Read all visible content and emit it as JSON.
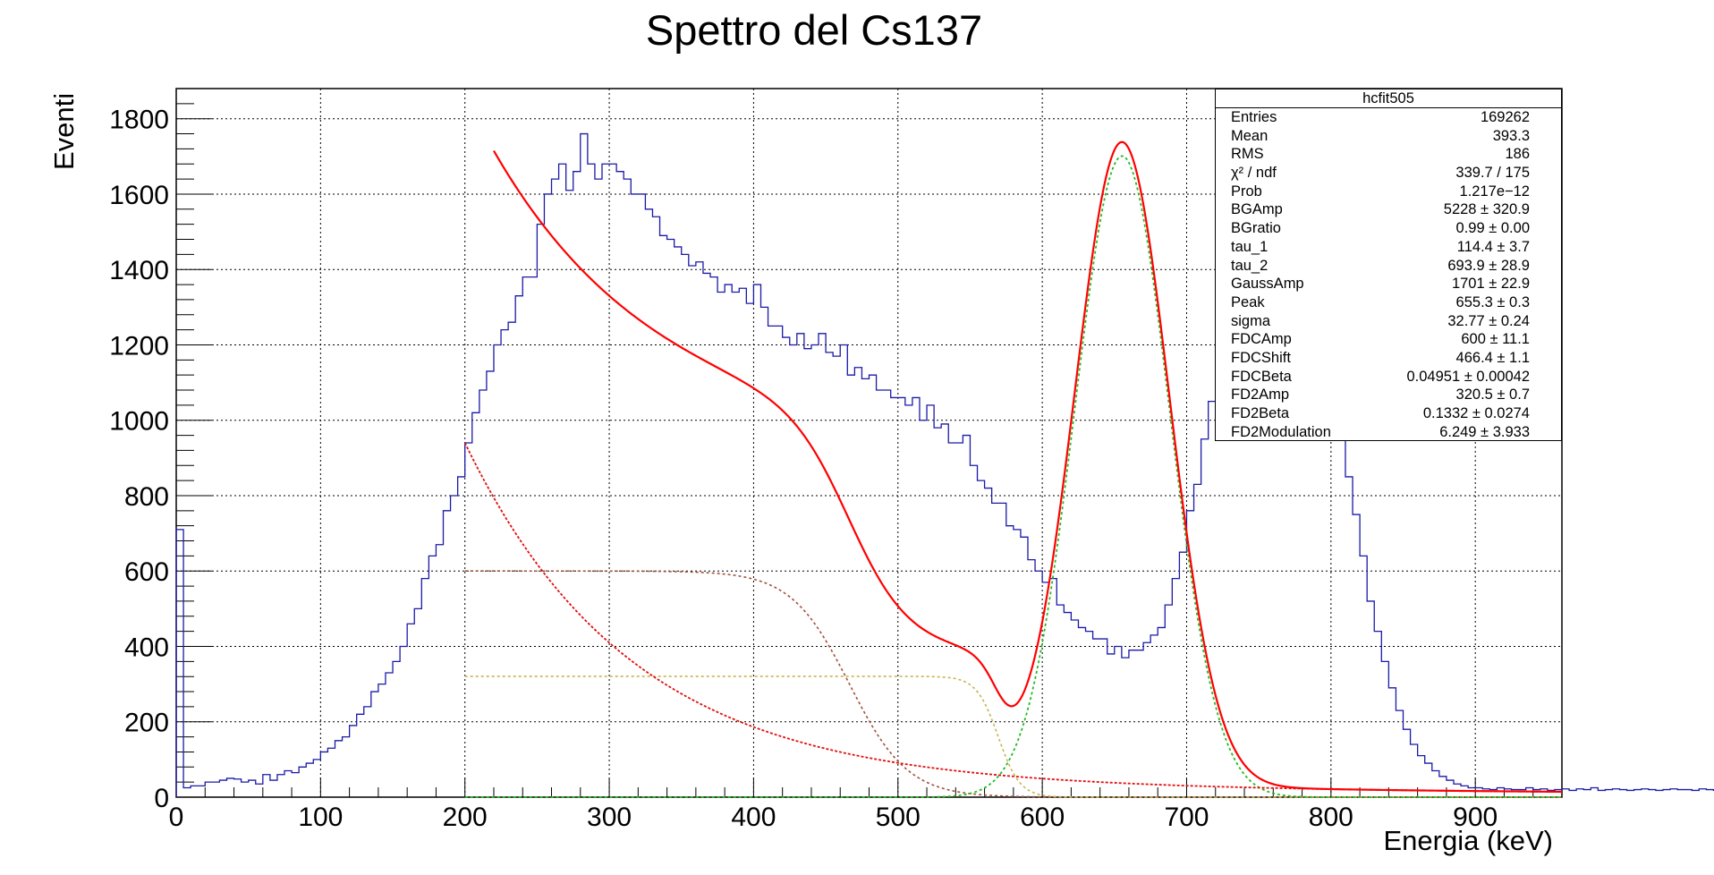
{
  "title": "Spettro del Cs137",
  "stats_box": {
    "name": "hcfit505",
    "rows": [
      {
        "label": "Entries",
        "value": "169262"
      },
      {
        "label": "Mean",
        "value": "393.3"
      },
      {
        "label": "RMS",
        "value": "186"
      },
      {
        "label": "χ² / ndf",
        "value": "339.7 / 175"
      },
      {
        "label": "Prob",
        "value": "1.217e−12"
      },
      {
        "label": "BGAmp",
        "value": "5228 ± 320.9"
      },
      {
        "label": "BGratio",
        "value": "0.99 ± 0.00"
      },
      {
        "label": "tau_1",
        "value": "114.4 ± 3.7"
      },
      {
        "label": "tau_2",
        "value": "693.9 ± 28.9"
      },
      {
        "label": "GaussAmp",
        "value": "1701 ± 22.9"
      },
      {
        "label": "Peak",
        "value": "655.3 ± 0.3"
      },
      {
        "label": "sigma",
        "value": "32.77 ± 0.24"
      },
      {
        "label": "FDCAmp",
        "value": "600 ± 11.1"
      },
      {
        "label": "FDCShift",
        "value": "466.4 ± 1.1"
      },
      {
        "label": "FDCBeta",
        "value": "0.04951 ± 0.00042"
      },
      {
        "label": "FD2Amp",
        "value": "320.5 ± 0.7"
      },
      {
        "label": "FD2Beta",
        "value": "0.1332 ± 0.0274"
      },
      {
        "label": "FD2Modulation",
        "value": "6.249 ± 3.933"
      }
    ]
  },
  "chart_data": {
    "type": "line",
    "title": "Spettro del Cs137",
    "xlabel": "Energia (keV)",
    "ylabel": "Eventi",
    "xlim": [
      0,
      960
    ],
    "ylim": [
      0,
      1880
    ],
    "grid": true,
    "legend": "stats box top-right",
    "x_ticks": [
      "0",
      "100",
      "200",
      "300",
      "400",
      "500",
      "600",
      "700",
      "800",
      "900"
    ],
    "y_ticks": [
      "0",
      "200",
      "400",
      "600",
      "800",
      "1000",
      "1200",
      "1400",
      "1600",
      "1800"
    ],
    "colors": {
      "histogram": "#1a1aa6",
      "total_fit": "#ff0000",
      "exponential_bg": "#e01010",
      "compton_edge": "#a0523c",
      "backscatter": "#c8b450",
      "gaussian": "#22bb22",
      "grid": "#000000"
    },
    "histogram": {
      "bin_width": 5,
      "x_start": 0,
      "counts": [
        710,
        25,
        30,
        30,
        40,
        40,
        45,
        50,
        48,
        40,
        45,
        35,
        60,
        45,
        60,
        70,
        65,
        80,
        90,
        100,
        120,
        130,
        150,
        160,
        190,
        220,
        240,
        280,
        300,
        330,
        360,
        400,
        460,
        500,
        580,
        640,
        670,
        760,
        800,
        850,
        940,
        1020,
        1080,
        1130,
        1200,
        1240,
        1260,
        1330,
        1380,
        1380,
        1520,
        1600,
        1640,
        1680,
        1610,
        1660,
        1760,
        1680,
        1640,
        1680,
        1680,
        1660,
        1640,
        1600,
        1600,
        1560,
        1540,
        1490,
        1480,
        1460,
        1440,
        1410,
        1420,
        1390,
        1380,
        1340,
        1360,
        1340,
        1350,
        1310,
        1360,
        1300,
        1250,
        1250,
        1220,
        1200,
        1230,
        1190,
        1200,
        1230,
        1180,
        1170,
        1200,
        1120,
        1140,
        1110,
        1120,
        1080,
        1080,
        1060,
        1060,
        1040,
        1060,
        1000,
        1040,
        980,
        990,
        940,
        940,
        960,
        880,
        840,
        820,
        780,
        780,
        720,
        710,
        690,
        630,
        600,
        570,
        580,
        510,
        490,
        470,
        450,
        440,
        420,
        420,
        380,
        400,
        370,
        390,
        390,
        410,
        430,
        450,
        510,
        580,
        650,
        760,
        830,
        950,
        1050,
        1200,
        1320,
        1450,
        1560,
        1640,
        1700,
        1740,
        1760,
        1780,
        1760,
        1750,
        1720,
        1680,
        1620,
        1480,
        1200,
        1080,
        960,
        850,
        750,
        640,
        520,
        440,
        360,
        290,
        230,
        180,
        140,
        110,
        90,
        70,
        55,
        45,
        35,
        30,
        25,
        25,
        22,
        20,
        25,
        22,
        20,
        20,
        25,
        20,
        22,
        18,
        20,
        22,
        18,
        22,
        20,
        25,
        18,
        20,
        22,
        20,
        18,
        20,
        22,
        20,
        18,
        20,
        22,
        20,
        20,
        18,
        22,
        20,
        18,
        20,
        22
      ]
    },
    "fit_parameters": {
      "BGAmp": 5228,
      "BGratio": 0.99,
      "tau_1": 114.4,
      "tau_2": 693.9,
      "GaussAmp": 1701,
      "Peak": 655.3,
      "sigma": 32.77,
      "FDCAmp": 600,
      "FDCShift": 466.4,
      "FDCBeta": 0.04951,
      "FD2Amp": 320.5,
      "FD2Beta": 0.1332,
      "FD2Modulation": 6.249
    },
    "fit_range": [
      220,
      960
    ],
    "components_range": [
      200,
      960
    ]
  }
}
